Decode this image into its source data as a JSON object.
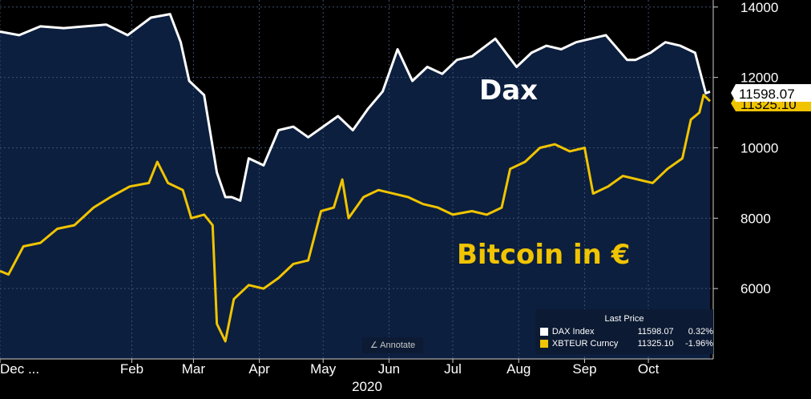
{
  "labels": {
    "dax": "Dax",
    "bitcoin": "Bitcoin in €",
    "year": "2020",
    "annotate": "Annotate",
    "annotate_icon": "pen-icon"
  },
  "legend": {
    "header": "Last Price",
    "rows": [
      {
        "name": "DAX Index",
        "value": "11598.07",
        "change": "0.32%",
        "color": "#ffffff"
      },
      {
        "name": "XBTEUR Curncy",
        "value": "11325.10",
        "change": "-1.96%",
        "color": "#f0c400"
      }
    ]
  },
  "price_tags": {
    "dax": "11598.07",
    "btc": "11325.10"
  },
  "chart_data": {
    "type": "line",
    "ylim": [
      4000,
      14200
    ],
    "yticks": [
      "14000",
      "12000",
      "10000",
      "8000",
      "6000"
    ],
    "ytick_values": [
      14000,
      12000,
      10000,
      8000,
      6000
    ],
    "xticks": [
      "Dec ...",
      "Feb",
      "Mar",
      "Apr",
      "May",
      "Jun",
      "Jul",
      "Aug",
      "Sep",
      "Oct"
    ],
    "xtick_dates": [
      "2019-12-01",
      "2020-02-01",
      "2020-03-01",
      "2020-04-01",
      "2020-05-01",
      "2020-06-01",
      "2020-07-01",
      "2020-08-01",
      "2020-09-01",
      "2020-10-01"
    ],
    "xlim": [
      "2019-12-01",
      "2020-10-30"
    ],
    "grid": true,
    "background": "#0c1f3f",
    "series": [
      {
        "name": "DAX Index",
        "color": "#ffffff",
        "fill": true,
        "points": [
          [
            "2019-12-01",
            13300
          ],
          [
            "2019-12-10",
            13200
          ],
          [
            "2019-12-20",
            13450
          ],
          [
            "2019-12-31",
            13400
          ],
          [
            "2020-01-10",
            13450
          ],
          [
            "2020-01-20",
            13500
          ],
          [
            "2020-01-30",
            13200
          ],
          [
            "2020-02-10",
            13700
          ],
          [
            "2020-02-19",
            13800
          ],
          [
            "2020-02-24",
            13000
          ],
          [
            "2020-02-28",
            11900
          ],
          [
            "2020-03-06",
            11500
          ],
          [
            "2020-03-12",
            9300
          ],
          [
            "2020-03-16",
            8600
          ],
          [
            "2020-03-19",
            8600
          ],
          [
            "2020-03-23",
            8500
          ],
          [
            "2020-03-27",
            9700
          ],
          [
            "2020-04-03",
            9500
          ],
          [
            "2020-04-10",
            10500
          ],
          [
            "2020-04-17",
            10600
          ],
          [
            "2020-04-24",
            10300
          ],
          [
            "2020-05-01",
            10600
          ],
          [
            "2020-05-08",
            10900
          ],
          [
            "2020-05-15",
            10500
          ],
          [
            "2020-05-22",
            11100
          ],
          [
            "2020-05-29",
            11600
          ],
          [
            "2020-06-05",
            12800
          ],
          [
            "2020-06-12",
            11900
          ],
          [
            "2020-06-19",
            12300
          ],
          [
            "2020-06-26",
            12100
          ],
          [
            "2020-07-03",
            12500
          ],
          [
            "2020-07-10",
            12600
          ],
          [
            "2020-07-21",
            13100
          ],
          [
            "2020-07-31",
            12300
          ],
          [
            "2020-08-07",
            12700
          ],
          [
            "2020-08-14",
            12900
          ],
          [
            "2020-08-21",
            12800
          ],
          [
            "2020-08-28",
            13000
          ],
          [
            "2020-09-04",
            13100
          ],
          [
            "2020-09-11",
            13200
          ],
          [
            "2020-09-21",
            12500
          ],
          [
            "2020-09-25",
            12500
          ],
          [
            "2020-10-02",
            12700
          ],
          [
            "2020-10-09",
            13000
          ],
          [
            "2020-10-16",
            12900
          ],
          [
            "2020-10-23",
            12700
          ],
          [
            "2020-10-28",
            11550
          ],
          [
            "2020-10-30",
            11598.07
          ]
        ]
      },
      {
        "name": "XBTEUR Curncy",
        "color": "#f0c400",
        "fill": false,
        "points": [
          [
            "2019-12-01",
            6500
          ],
          [
            "2019-12-05",
            6400
          ],
          [
            "2019-12-12",
            7200
          ],
          [
            "2019-12-20",
            7300
          ],
          [
            "2019-12-28",
            7700
          ],
          [
            "2020-01-05",
            7800
          ],
          [
            "2020-01-14",
            8300
          ],
          [
            "2020-01-22",
            8600
          ],
          [
            "2020-01-31",
            8900
          ],
          [
            "2020-02-09",
            9000
          ],
          [
            "2020-02-13",
            9600
          ],
          [
            "2020-02-18",
            9000
          ],
          [
            "2020-02-25",
            8800
          ],
          [
            "2020-02-29",
            8000
          ],
          [
            "2020-03-06",
            8100
          ],
          [
            "2020-03-10",
            7800
          ],
          [
            "2020-03-12",
            5000
          ],
          [
            "2020-03-16",
            4500
          ],
          [
            "2020-03-20",
            5700
          ],
          [
            "2020-03-27",
            6100
          ],
          [
            "2020-04-03",
            6000
          ],
          [
            "2020-04-10",
            6300
          ],
          [
            "2020-04-17",
            6700
          ],
          [
            "2020-04-24",
            6800
          ],
          [
            "2020-04-30",
            8200
          ],
          [
            "2020-05-06",
            8300
          ],
          [
            "2020-05-10",
            9100
          ],
          [
            "2020-05-13",
            8000
          ],
          [
            "2020-05-20",
            8600
          ],
          [
            "2020-05-27",
            8800
          ],
          [
            "2020-06-03",
            8700
          ],
          [
            "2020-06-10",
            8600
          ],
          [
            "2020-06-17",
            8400
          ],
          [
            "2020-06-24",
            8300
          ],
          [
            "2020-07-01",
            8100
          ],
          [
            "2020-07-10",
            8200
          ],
          [
            "2020-07-17",
            8100
          ],
          [
            "2020-07-24",
            8300
          ],
          [
            "2020-07-28",
            9400
          ],
          [
            "2020-08-04",
            9600
          ],
          [
            "2020-08-11",
            10000
          ],
          [
            "2020-08-18",
            10100
          ],
          [
            "2020-08-25",
            9900
          ],
          [
            "2020-09-01",
            10000
          ],
          [
            "2020-09-05",
            8700
          ],
          [
            "2020-09-12",
            8900
          ],
          [
            "2020-09-19",
            9200
          ],
          [
            "2020-09-26",
            9100
          ],
          [
            "2020-10-03",
            9000
          ],
          [
            "2020-10-10",
            9400
          ],
          [
            "2020-10-17",
            9700
          ],
          [
            "2020-10-21",
            10800
          ],
          [
            "2020-10-25",
            11000
          ],
          [
            "2020-10-27",
            11500
          ],
          [
            "2020-10-30",
            11325.1
          ]
        ]
      }
    ]
  }
}
